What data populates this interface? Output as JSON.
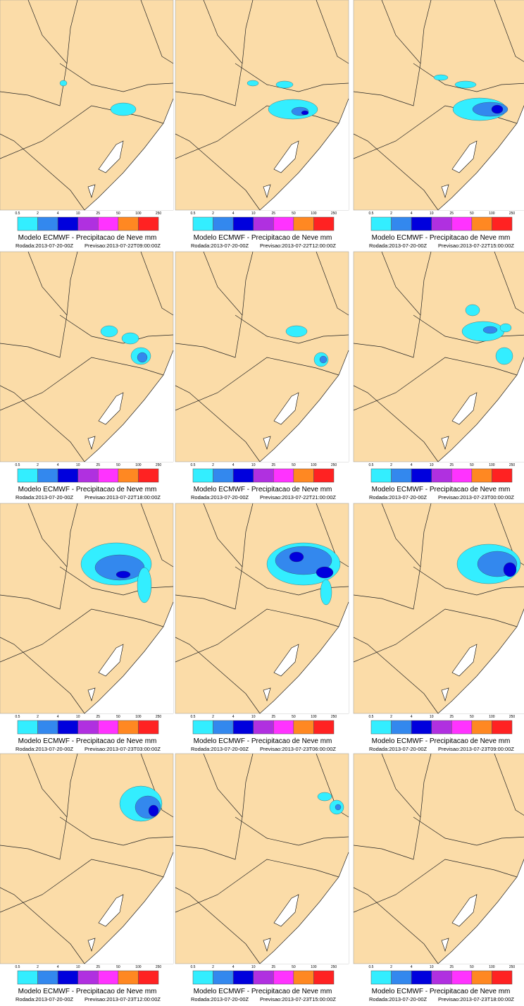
{
  "title": "Modelo ECMWF - Precipitacao de Neve mm",
  "run": "Rodada:2013-07-20-00Z",
  "legend": {
    "ticks": [
      0.5,
      2,
      4,
      10,
      25,
      50,
      100,
      250
    ],
    "colors": [
      "#33eeff",
      "#3388ee",
      "#0000dd",
      "#b030e0",
      "#ff33ff",
      "#ff8822",
      "#ff2222"
    ]
  },
  "panels": [
    {
      "forecast": "Previsao:2013-07-22T09:00:00Z"
    },
    {
      "forecast": "Previsao:2013-07-22T12:00:00Z"
    },
    {
      "forecast": "Previsao:2013-07-22T15:00:00Z"
    },
    {
      "forecast": "Previsao:2013-07-22T18:00:00Z"
    },
    {
      "forecast": "Previsao:2013-07-22T21:00:00Z"
    },
    {
      "forecast": "Previsao:2013-07-23T00:00:00Z"
    },
    {
      "forecast": "Previsao:2013-07-23T03:00:00Z"
    },
    {
      "forecast": "Previsao:2013-07-23T06:00:00Z"
    },
    {
      "forecast": "Previsao:2013-07-23T09:00:00Z"
    },
    {
      "forecast": "Previsao:2013-07-23T12:00:00Z"
    },
    {
      "forecast": "Previsao:2013-07-23T15:00:00Z"
    },
    {
      "forecast": "Previsao:2013-07-23T18:00:00Z"
    }
  ]
}
